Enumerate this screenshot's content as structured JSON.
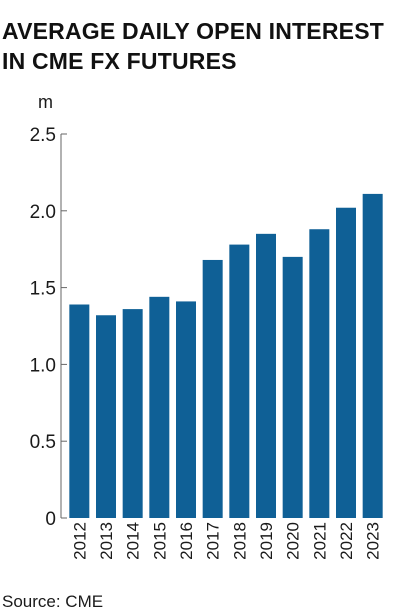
{
  "header": {
    "title": "AVERAGE DAILY OPEN INTEREST IN CME FX FUTURES"
  },
  "footer": {
    "source": "Source: CME"
  },
  "chart_data": {
    "type": "bar",
    "title": "AVERAGE DAILY OPEN INTEREST IN CME FX FUTURES",
    "xlabel": "",
    "ylabel": "m",
    "ylim": [
      0,
      2.5
    ],
    "yticks": [
      0,
      0.5,
      1.0,
      1.5,
      2.0,
      2.5
    ],
    "ytick_labels": [
      "0",
      "0.5",
      "1.0",
      "1.5",
      "2.0",
      "2.5"
    ],
    "grid": false,
    "categories": [
      "2012",
      "2013",
      "2014",
      "2015",
      "2016",
      "2017",
      "2018",
      "2019",
      "2020",
      "2021",
      "2022",
      "2023"
    ],
    "values": [
      1.39,
      1.32,
      1.36,
      1.44,
      1.41,
      1.68,
      1.78,
      1.85,
      1.7,
      1.88,
      2.02,
      2.11
    ],
    "bar_color": "#0f6096",
    "axis_color": "#666666"
  }
}
